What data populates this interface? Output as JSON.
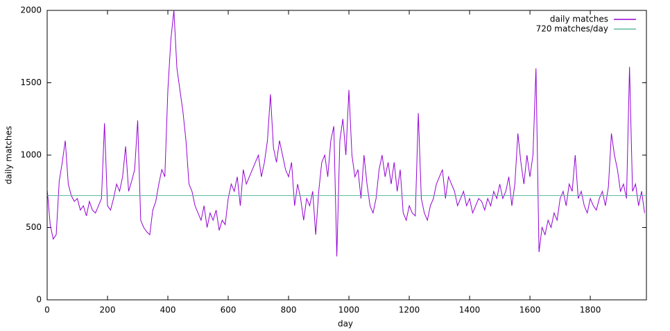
{
  "chart_data": {
    "type": "line",
    "xlabel": "day",
    "ylabel": "daily matches",
    "xlim": [
      0,
      1986
    ],
    "ylim": [
      0,
      2000
    ],
    "xticks": [
      0,
      200,
      400,
      600,
      800,
      1000,
      1200,
      1400,
      1600,
      1800
    ],
    "yticks": [
      0,
      500,
      1000,
      1500,
      2000
    ],
    "legend": "top-right",
    "series": [
      {
        "name": "daily matches",
        "color": "#9400d3",
        "x": [
          0,
          10,
          20,
          30,
          40,
          50,
          60,
          70,
          80,
          90,
          100,
          110,
          120,
          130,
          140,
          150,
          160,
          170,
          180,
          190,
          200,
          210,
          220,
          230,
          240,
          250,
          260,
          270,
          280,
          290,
          300,
          310,
          320,
          330,
          340,
          350,
          360,
          370,
          380,
          390,
          400,
          410,
          420,
          430,
          440,
          450,
          460,
          470,
          480,
          490,
          500,
          510,
          520,
          530,
          540,
          550,
          560,
          570,
          580,
          590,
          600,
          610,
          620,
          630,
          640,
          650,
          660,
          670,
          680,
          690,
          700,
          710,
          720,
          730,
          740,
          750,
          760,
          770,
          780,
          790,
          800,
          810,
          820,
          830,
          840,
          850,
          860,
          870,
          880,
          890,
          900,
          910,
          920,
          930,
          940,
          950,
          960,
          970,
          980,
          990,
          1000,
          1010,
          1020,
          1030,
          1040,
          1050,
          1060,
          1070,
          1080,
          1090,
          1100,
          1110,
          1120,
          1130,
          1140,
          1150,
          1160,
          1170,
          1180,
          1190,
          1200,
          1210,
          1220,
          1230,
          1240,
          1250,
          1260,
          1270,
          1280,
          1290,
          1300,
          1310,
          1320,
          1330,
          1340,
          1350,
          1360,
          1370,
          1380,
          1390,
          1400,
          1410,
          1420,
          1430,
          1440,
          1450,
          1460,
          1470,
          1480,
          1490,
          1500,
          1510,
          1520,
          1530,
          1540,
          1550,
          1560,
          1570,
          1580,
          1590,
          1600,
          1610,
          1620,
          1630,
          1640,
          1650,
          1660,
          1670,
          1680,
          1690,
          1700,
          1710,
          1720,
          1730,
          1740,
          1750,
          1760,
          1770,
          1780,
          1790,
          1800,
          1810,
          1820,
          1830,
          1840,
          1850,
          1860,
          1870,
          1880,
          1890,
          1900,
          1910,
          1920,
          1930,
          1940,
          1950,
          1960,
          1970,
          1980
        ],
        "values": [
          770,
          520,
          420,
          450,
          820,
          950,
          1100,
          800,
          720,
          680,
          700,
          620,
          650,
          580,
          680,
          620,
          600,
          650,
          700,
          1220,
          650,
          620,
          700,
          800,
          750,
          850,
          1060,
          750,
          820,
          900,
          1240,
          550,
          500,
          470,
          450,
          620,
          680,
          800,
          900,
          850,
          1450,
          1800,
          2000,
          1600,
          1450,
          1300,
          1100,
          800,
          750,
          650,
          600,
          550,
          650,
          500,
          600,
          550,
          620,
          480,
          550,
          520,
          700,
          800,
          750,
          850,
          650,
          900,
          800,
          850,
          900,
          950,
          1000,
          850,
          950,
          1100,
          1420,
          1050,
          950,
          1100,
          1000,
          900,
          850,
          950,
          650,
          800,
          700,
          550,
          700,
          650,
          750,
          450,
          750,
          950,
          1000,
          850,
          1100,
          1200,
          300,
          1100,
          1250,
          1000,
          1450,
          1000,
          850,
          900,
          700,
          1000,
          800,
          650,
          600,
          700,
          900,
          1000,
          850,
          950,
          800,
          950,
          750,
          900,
          600,
          550,
          650,
          600,
          580,
          1290,
          700,
          600,
          550,
          650,
          700,
          800,
          850,
          900,
          700,
          850,
          800,
          750,
          650,
          700,
          750,
          650,
          700,
          600,
          650,
          700,
          680,
          620,
          700,
          650,
          750,
          700,
          800,
          700,
          750,
          850,
          650,
          800,
          1150,
          950,
          800,
          1000,
          850,
          1000,
          1600,
          330,
          500,
          450,
          550,
          500,
          600,
          550,
          700,
          750,
          650,
          800,
          750,
          1000,
          700,
          750,
          650,
          600,
          700,
          650,
          620,
          700,
          750,
          650,
          780,
          1150,
          1000,
          900,
          750,
          800,
          700,
          1610,
          750,
          800,
          650,
          750,
          600
        ]
      },
      {
        "name": "720 matches/day",
        "color": "#5fb89e",
        "x": [
          0,
          1986
        ],
        "values": [
          720,
          720
        ]
      }
    ]
  }
}
